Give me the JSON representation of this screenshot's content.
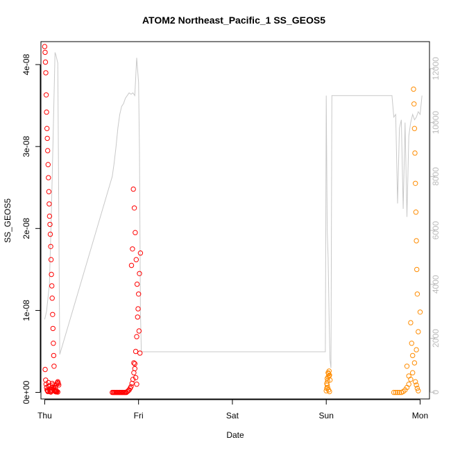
{
  "chart_data": {
    "type": "scatter",
    "title": "ATOM2 Northeast_Pacific_1 SS_GEOS5",
    "xlabel": "Date",
    "ylabel": "SS_GEOS5",
    "x_ticks": [
      "Thu",
      "Fri",
      "Sat",
      "Sun",
      "Mon"
    ],
    "xlim": [
      -0.04,
      4.1
    ],
    "y_ticks": [
      "0e+00",
      "1e-08",
      "2e-08",
      "3e-08",
      "4e-08"
    ],
    "ylim": [
      -8e-10,
      4.28e-08
    ],
    "y2_ticks": [
      "0",
      "2000",
      "4000",
      "6000",
      "8000",
      "10000",
      "12000"
    ],
    "y2lim": [
      -250,
      13000
    ],
    "colors": {
      "flight1": "#ff0000",
      "flight2": "#ff0000",
      "flight3": "#ff8c00",
      "flight4": "#ff8c00",
      "altitude_line": "#c8c8c8",
      "right_axis": "#bbbbbb",
      "box": "#000000"
    },
    "series": [
      {
        "color": "#ff0000",
        "x": [
          0.0,
          0.004,
          0.008,
          0.012,
          0.016,
          0.02,
          0.024,
          0.028,
          0.032,
          0.036,
          0.04,
          0.044,
          0.048,
          0.052,
          0.056,
          0.06,
          0.064,
          0.068,
          0.072,
          0.076,
          0.08,
          0.084,
          0.088,
          0.092,
          0.096,
          0.1,
          0.005,
          0.01,
          0.015,
          0.02,
          0.025,
          0.03,
          0.035,
          0.04,
          0.045,
          0.05,
          0.055,
          0.06,
          0.065,
          0.07,
          0.075,
          0.08,
          0.085,
          0.09,
          0.095,
          0.1,
          0.105,
          0.11,
          0.115,
          0.12,
          0.125,
          0.13,
          0.135,
          0.14,
          0.145,
          0.15,
          0.11,
          0.12,
          0.13,
          0.14
        ],
        "y": [
          4.22e-08,
          4.15e-08,
          4.03e-08,
          3.9e-08,
          3.63e-08,
          3.42e-08,
          3.22e-08,
          3.1e-08,
          2.95e-08,
          2.78e-08,
          2.62e-08,
          2.45e-08,
          2.3e-08,
          2.15e-08,
          2.05e-08,
          1.93e-08,
          1.78e-08,
          1.62e-08,
          1.44e-08,
          1.3e-08,
          1.15e-08,
          9.5e-09,
          7.8e-09,
          6e-09,
          4.5e-09,
          3.2e-09,
          2.8e-09,
          1.5e-09,
          1e-09,
          6e-10,
          3e-10,
          2e-10,
          1e-10,
          1.2e-09,
          8e-10,
          4e-10,
          2e-10,
          1e-10,
          5e-11,
          3e-10,
          6e-10,
          1.1e-09,
          9e-10,
          7e-10,
          5e-10,
          3e-10,
          2e-10,
          1.5e-10,
          1e-10,
          8e-11,
          6e-11,
          1e-09,
          1.2e-09,
          1.3e-09,
          1.1e-09,
          9e-10,
          6e-10,
          3e-10,
          1e-10,
          5e-11
        ]
      },
      {
        "color": "#ff0000",
        "x": [
          0.72,
          0.73,
          0.74,
          0.75,
          0.76,
          0.77,
          0.78,
          0.79,
          0.8,
          0.81,
          0.82,
          0.83,
          0.84,
          0.85,
          0.86,
          0.87,
          0.88,
          0.89,
          0.9,
          0.91,
          0.92,
          0.93,
          0.94,
          0.95,
          0.96,
          0.97,
          0.98,
          0.99,
          1.0,
          1.01,
          1.02,
          0.925,
          0.935,
          0.945,
          0.955,
          0.965,
          0.975,
          0.985,
          0.995,
          1.005,
          1.015,
          0.95,
          0.96,
          0.97,
          0.98
        ],
        "y": [
          0,
          0,
          0,
          0,
          0,
          0,
          0,
          0,
          0,
          0,
          0,
          0,
          0,
          0,
          0,
          0,
          1e-10,
          2e-10,
          3e-10,
          5e-10,
          7e-10,
          1.1e-09,
          1.6e-09,
          2.4e-09,
          3.5e-09,
          5e-09,
          6.8e-09,
          9.2e-09,
          1.2e-08,
          1.45e-08,
          1.7e-08,
          1.55e-08,
          1.75e-08,
          2.48e-08,
          2.25e-08,
          1.95e-08,
          1.62e-08,
          1.32e-08,
          1.02e-08,
          7.5e-09,
          4.8e-09,
          3.6e-09,
          2.9e-09,
          1.8e-09,
          1e-09
        ]
      },
      {
        "color": "#ff8c00",
        "x": [
          3.0,
          3.005,
          3.01,
          3.015,
          3.02,
          3.025,
          3.03,
          3.035,
          3.04,
          3.005,
          3.015,
          3.025,
          3.035,
          3.01,
          3.02,
          3.03
        ],
        "y": [
          2e-10,
          5e-10,
          9e-10,
          1.4e-09,
          1.9e-09,
          2.3e-09,
          2.6e-09,
          2.1e-09,
          1.5e-09,
          1.1e-09,
          6e-10,
          3e-10,
          1e-10,
          1.7e-09,
          2.4e-09,
          2e-09
        ]
      },
      {
        "color": "#ff8c00",
        "x": [
          3.72,
          3.74,
          3.76,
          3.78,
          3.8,
          3.82,
          3.84,
          3.86,
          3.88,
          3.9,
          3.92,
          3.94,
          3.96,
          3.98,
          4.0,
          3.93,
          3.935,
          3.94,
          3.945,
          3.95,
          3.955,
          3.96,
          3.965,
          3.97,
          3.9,
          3.91,
          3.92,
          3.86,
          3.88,
          3.95,
          3.96,
          3.97,
          3.98
        ],
        "y": [
          0,
          0,
          0,
          0,
          0,
          1e-10,
          3e-10,
          6e-10,
          1e-09,
          1.6e-09,
          2.4e-09,
          3.6e-09,
          5.2e-09,
          7.4e-09,
          9.8e-09,
          3.7e-08,
          3.52e-08,
          3.22e-08,
          2.92e-08,
          2.55e-08,
          2.2e-08,
          1.85e-08,
          1.5e-08,
          1.2e-08,
          8.5e-09,
          6e-09,
          4.5e-09,
          3.2e-09,
          2e-09,
          1.3e-09,
          9e-10,
          5e-10,
          2e-10
        ]
      }
    ],
    "altitude_line": {
      "x": [
        0.0,
        0.02,
        0.05,
        0.07,
        0.09,
        0.11,
        0.12,
        0.14,
        0.16,
        0.72,
        0.74,
        0.76,
        0.78,
        0.8,
        0.82,
        0.84,
        0.86,
        0.88,
        0.9,
        0.92,
        0.94,
        0.96,
        0.98,
        1.0,
        1.01,
        1.02,
        1.03,
        2.99,
        3.0,
        3.01,
        3.02,
        3.03,
        3.04,
        3.05,
        3.06,
        3.7,
        3.72,
        3.74,
        3.76,
        3.78,
        3.8,
        3.82,
        3.84,
        3.86,
        3.88,
        3.9,
        3.92,
        3.94,
        3.96,
        3.98,
        4.0,
        4.02
      ],
      "y": [
        2700,
        3000,
        4000,
        6500,
        9500,
        12600,
        12500,
        12200,
        1400,
        8000,
        8500,
        9100,
        9800,
        10300,
        10600,
        10700,
        10900,
        11000,
        11100,
        11050,
        11100,
        11000,
        12400,
        11500,
        9000,
        3000,
        1500,
        1500,
        11000,
        6000,
        5000,
        2800,
        1200,
        900,
        11000,
        11000,
        10200,
        10300,
        7000,
        9800,
        10100,
        6800,
        10000,
        6500,
        9500,
        10000,
        10300,
        10100,
        10200,
        10400,
        10300,
        11000
      ]
    }
  }
}
